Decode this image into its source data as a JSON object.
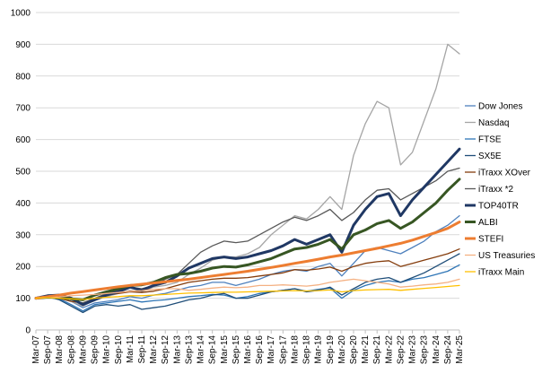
{
  "chart_data": {
    "type": "line",
    "title": "",
    "xlabel": "",
    "ylabel": "",
    "ylim": [
      0,
      1000
    ],
    "yticks": [
      0,
      100,
      200,
      300,
      400,
      500,
      600,
      700,
      800,
      900,
      1000
    ],
    "grid": "horizontal",
    "legend_position": "right",
    "x_tick_labels": [
      "Mar-07",
      "Sep-07",
      "Mar-08",
      "Sep-08",
      "Mar-09",
      "Sep-09",
      "Mar-10",
      "Sep-10",
      "Mar-11",
      "Sep-11",
      "Mar-12",
      "Sep-12",
      "Mar-13",
      "Sep-13",
      "Mar-14",
      "Sep-14",
      "Mar-15",
      "Sep-15",
      "Mar-16",
      "Sep-16",
      "Mar-17",
      "Sep-17",
      "Mar-18",
      "Sep-18",
      "Mar-19",
      "Sep-19",
      "Mar-20",
      "Sep-20",
      "Mar-21",
      "Sep-21",
      "Mar-22",
      "Sep-22",
      "Mar-23",
      "Sep-23",
      "Mar-24",
      "Sep-24",
      "Mar-25"
    ],
    "series": [
      {
        "name": "Dow Jones",
        "color": "#4f81bd",
        "width": 1.3,
        "values": [
          100,
          105,
          100,
          90,
          70,
          85,
          90,
          95,
          105,
          100,
          110,
          115,
          125,
          135,
          140,
          150,
          150,
          140,
          150,
          160,
          175,
          185,
          190,
          185,
          200,
          210,
          170,
          210,
          250,
          260,
          250,
          240,
          260,
          280,
          310,
          330,
          360
        ]
      },
      {
        "name": "Nasdaq",
        "color": "#a5a5a5",
        "width": 1.3,
        "values": [
          100,
          108,
          100,
          90,
          75,
          95,
          105,
          115,
          125,
          120,
          135,
          140,
          150,
          175,
          195,
          220,
          230,
          230,
          240,
          260,
          300,
          330,
          360,
          350,
          380,
          420,
          380,
          550,
          650,
          720,
          700,
          520,
          560,
          660,
          760,
          900,
          870
        ]
      },
      {
        "name": "FTSE",
        "color": "#2e75b6",
        "width": 1.3,
        "values": [
          100,
          102,
          98,
          80,
          60,
          80,
          85,
          90,
          95,
          88,
          92,
          95,
          100,
          105,
          108,
          112,
          110,
          100,
          105,
          115,
          120,
          125,
          130,
          122,
          128,
          132,
          100,
          125,
          140,
          150,
          155,
          150,
          160,
          165,
          175,
          185,
          205
        ]
      },
      {
        "name": "SX5E",
        "color": "#1f4e79",
        "width": 1.3,
        "values": [
          100,
          105,
          95,
          75,
          55,
          75,
          80,
          75,
          80,
          65,
          70,
          75,
          85,
          95,
          100,
          110,
          115,
          100,
          100,
          110,
          120,
          125,
          130,
          120,
          125,
          135,
          110,
          130,
          150,
          160,
          165,
          150,
          165,
          180,
          200,
          220,
          240
        ]
      },
      {
        "name": "iTraxx XOver",
        "color": "#843c0c",
        "width": 1.3,
        "values": [
          100,
          105,
          100,
          90,
          85,
          100,
          110,
          115,
          120,
          118,
          122,
          130,
          140,
          150,
          155,
          160,
          163,
          163,
          165,
          170,
          175,
          180,
          190,
          188,
          192,
          198,
          185,
          200,
          210,
          215,
          218,
          200,
          210,
          220,
          230,
          240,
          255
        ]
      },
      {
        "name": "iTraxx *2",
        "color": "#595959",
        "width": 1.3,
        "values": [
          100,
          108,
          105,
          95,
          85,
          100,
          115,
          125,
          135,
          130,
          140,
          160,
          175,
          210,
          245,
          265,
          280,
          275,
          280,
          300,
          320,
          340,
          355,
          345,
          360,
          380,
          345,
          370,
          410,
          440,
          445,
          410,
          430,
          450,
          470,
          500,
          510
        ]
      },
      {
        "name": "TOP40TR",
        "color": "#203864",
        "width": 3,
        "values": [
          100,
          108,
          110,
          100,
          80,
          95,
          110,
          120,
          135,
          125,
          140,
          150,
          170,
          195,
          210,
          225,
          230,
          225,
          230,
          240,
          250,
          265,
          285,
          270,
          285,
          300,
          245,
          330,
          380,
          420,
          430,
          360,
          410,
          450,
          490,
          530,
          570
        ]
      },
      {
        "name": "ALBI",
        "color": "#375623",
        "width": 3,
        "values": [
          100,
          103,
          102,
          98,
          95,
          110,
          120,
          130,
          140,
          142,
          150,
          165,
          175,
          178,
          185,
          195,
          200,
          198,
          205,
          215,
          225,
          240,
          255,
          260,
          270,
          285,
          255,
          300,
          315,
          335,
          345,
          320,
          340,
          370,
          400,
          440,
          475
        ]
      },
      {
        "name": "STEFI",
        "color": "#ed7d31",
        "width": 3,
        "values": [
          100,
          105,
          110,
          116,
          121,
          126,
          131,
          136,
          140,
          144,
          148,
          152,
          156,
          160,
          165,
          170,
          175,
          180,
          185,
          191,
          197,
          203,
          210,
          216,
          223,
          230,
          236,
          243,
          250,
          257,
          265,
          273,
          283,
          295,
          307,
          320,
          340
        ]
      },
      {
        "name": "US Treasuries",
        "color": "#f4b183",
        "width": 1.3,
        "values": [
          100,
          102,
          104,
          108,
          110,
          112,
          115,
          118,
          122,
          124,
          128,
          130,
          130,
          125,
          128,
          132,
          135,
          133,
          135,
          140,
          140,
          142,
          140,
          138,
          142,
          150,
          155,
          160,
          155,
          150,
          145,
          135,
          138,
          142,
          145,
          150,
          160
        ]
      },
      {
        "name": "iTraxx Main",
        "color": "#ffc000",
        "width": 1.3,
        "values": [
          100,
          102,
          100,
          98,
          96,
          100,
          103,
          105,
          108,
          108,
          110,
          112,
          114,
          116,
          117,
          118,
          119,
          119,
          120,
          121,
          122,
          123,
          124,
          123,
          124,
          126,
          120,
          124,
          126,
          127,
          128,
          125,
          128,
          131,
          134,
          137,
          140
        ]
      }
    ]
  }
}
